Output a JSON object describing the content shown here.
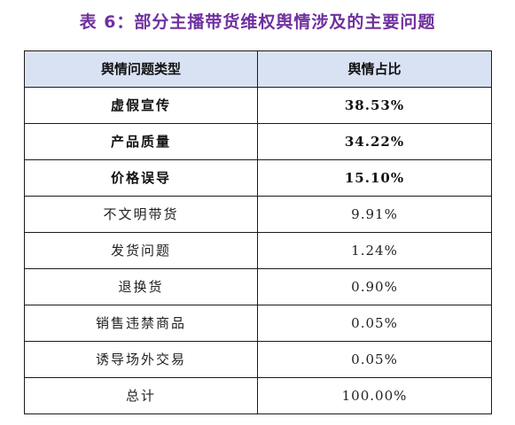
{
  "caption": "表 6：部分主播带货维权舆情涉及的主要问题",
  "table": {
    "headers": [
      "舆情问题类型",
      "舆情占比"
    ],
    "rows": [
      {
        "category": "虚假宣传",
        "share": "38.53%",
        "bold": true
      },
      {
        "category": "产品质量",
        "share": "34.22%",
        "bold": true
      },
      {
        "category": "价格误导",
        "share": "15.10%",
        "bold": true
      },
      {
        "category": "不文明带货",
        "share": "9.91%",
        "bold": false
      },
      {
        "category": "发货问题",
        "share": "1.24%",
        "bold": false
      },
      {
        "category": "退换货",
        "share": "0.90%",
        "bold": false
      },
      {
        "category": "销售违禁商品",
        "share": "0.05%",
        "bold": false
      },
      {
        "category": "诱导场外交易",
        "share": "0.05%",
        "bold": false
      },
      {
        "category": "总计",
        "share": "100.00%",
        "bold": false
      }
    ]
  },
  "colors": {
    "caption": "#7030a0",
    "header_background": "#d9e2f3",
    "border": "#1a1a1a"
  }
}
